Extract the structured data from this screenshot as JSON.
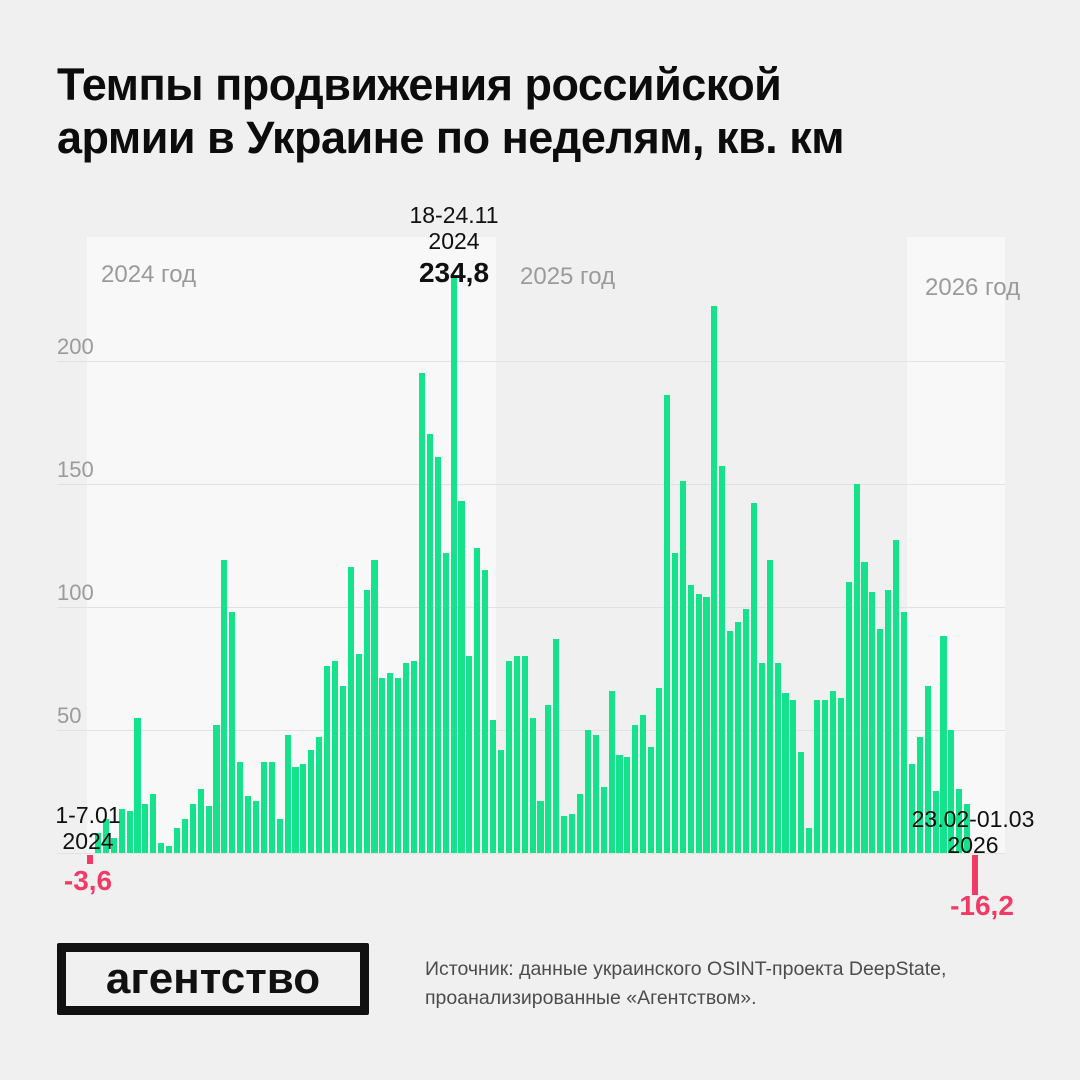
{
  "title": {
    "line1": "Темпы продвижения российской",
    "line2": "армии в Украине по неделям, кв. км"
  },
  "chart_data": {
    "type": "bar",
    "title": "Темпы продвижения российской армии в Украине по неделям, кв. км",
    "unit": "кв. км",
    "x_description": "недели с 1-7.01.2024 по 23.02-01.03.2026",
    "ylim": [
      -20,
      240
    ],
    "yticks": [
      50,
      100,
      150,
      200
    ],
    "grid": true,
    "legend": "none",
    "bar_color": "#15e38b",
    "negative_bar_color": "#f23a67",
    "year_labels": [
      {
        "text": "2024 год"
      },
      {
        "text": "2025 год"
      },
      {
        "text": "2026 год"
      }
    ],
    "values": [
      -3.6,
      8,
      14,
      6,
      18,
      17,
      55,
      20,
      24,
      4,
      3,
      10,
      14,
      20,
      26,
      19,
      52,
      119,
      98,
      37,
      23,
      21,
      37,
      37,
      14,
      48,
      35,
      36,
      42,
      47,
      76,
      78,
      68,
      116,
      81,
      107,
      119,
      71,
      73,
      71,
      77,
      78,
      195,
      170,
      161,
      122,
      234.8,
      143,
      80,
      124,
      115,
      54,
      42,
      78,
      80,
      80,
      55,
      21,
      60,
      87,
      15,
      16,
      24,
      50,
      48,
      27,
      66,
      40,
      39,
      52,
      56,
      43,
      67,
      186,
      122,
      151,
      109,
      105,
      104,
      222,
      157,
      90,
      94,
      99,
      142,
      77,
      119,
      77,
      65,
      62,
      41,
      10,
      62,
      62,
      66,
      63,
      110,
      150,
      118,
      106,
      91,
      107,
      127,
      98,
      36,
      47,
      68,
      25,
      88,
      50,
      26,
      20,
      -16.2
    ],
    "annotations": {
      "peak": {
        "date_line1": "18-24.11",
        "date_line2": "2024",
        "value_label": "234,8",
        "week_index": 46
      },
      "first": {
        "date_line1": "1-7.01",
        "date_line2": "2024",
        "value_label": "-3,6",
        "week_index": 0
      },
      "last": {
        "date_line1": "23.02-01.03",
        "date_line2": "2026",
        "value_label": "-16,2",
        "week_index": 112
      }
    }
  },
  "footer": {
    "logo": "агентство",
    "source_line1": "Источник: данные украинского OSINT-проекта DeepState,",
    "source_line2": "проанализированные «Агентством»."
  }
}
